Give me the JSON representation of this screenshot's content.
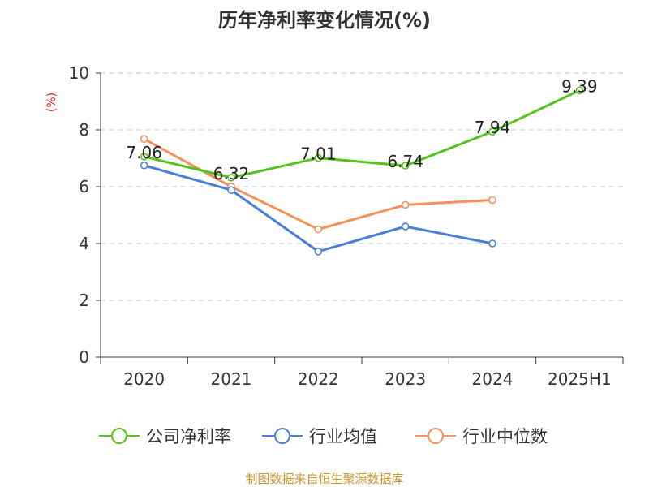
{
  "chart_data": {
    "type": "line",
    "title": "历年净利率变化情况(%)",
    "ylabel": "(%)",
    "categories": [
      "2020",
      "2021",
      "2022",
      "2023",
      "2024",
      "2025H1"
    ],
    "ylim": [
      0,
      10
    ],
    "yticks": [
      0,
      2,
      4,
      6,
      8,
      10
    ],
    "grid": true,
    "legend_position": "bottom",
    "series": [
      {
        "name": "公司净利率",
        "color": "#52c41a",
        "values": [
          7.06,
          6.32,
          7.01,
          6.74,
          7.94,
          9.39
        ],
        "show_labels": true
      },
      {
        "name": "行业均值",
        "color": "#4a7fd9",
        "values": [
          6.75,
          5.88,
          3.72,
          4.6,
          4.0,
          null
        ],
        "show_labels": false
      },
      {
        "name": "行业中位数",
        "color": "#f5915a",
        "values": [
          7.68,
          6.0,
          4.5,
          5.36,
          5.53,
          null
        ],
        "show_labels": false
      }
    ]
  },
  "source": "制图数据来自恒生聚源数据库"
}
